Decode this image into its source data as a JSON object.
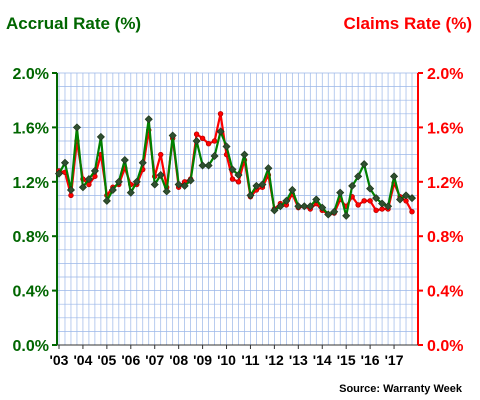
{
  "chart_data": {
    "type": "line",
    "left_axis_label": "Accrual Rate (%)",
    "right_axis_label": "Claims Rate (%)",
    "source": "Source: Warranty Week",
    "x_labels": [
      "'03",
      "'04",
      "'05",
      "'06",
      "'07",
      "'08",
      "'09",
      "'10",
      "'11",
      "'12",
      "'13",
      "'14",
      "'15",
      "'16",
      "'17"
    ],
    "y_ticks": [
      "0.0%",
      "0.4%",
      "0.8%",
      "1.2%",
      "1.6%",
      "2.0%"
    ],
    "ylim": [
      0,
      2.0
    ],
    "colors": {
      "accrual": "#006600",
      "claims": "#ff0000",
      "grid": "#9bb7e8"
    },
    "series": [
      {
        "key": "accrual",
        "color": "#008000",
        "values": [
          1.26,
          1.34,
          1.14,
          1.6,
          1.16,
          1.22,
          1.28,
          1.53,
          1.06,
          1.14,
          1.2,
          1.36,
          1.12,
          1.2,
          1.34,
          1.66,
          1.18,
          1.25,
          1.13,
          1.54,
          1.18,
          1.17,
          1.21,
          1.5,
          1.32,
          1.32,
          1.39,
          1.57,
          1.46,
          1.29,
          1.25,
          1.4,
          1.1,
          1.17,
          1.18,
          1.3,
          0.99,
          1.02,
          1.06,
          1.14,
          1.02,
          1.02,
          1.02,
          1.07,
          1.01,
          0.96,
          0.98,
          1.12,
          0.95,
          1.17,
          1.24,
          1.33,
          1.15,
          1.08,
          1.04,
          1.02,
          1.24,
          1.07,
          1.1,
          1.08
        ]
      },
      {
        "key": "claims",
        "color": "#ff0000",
        "values": [
          1.28,
          1.27,
          1.1,
          1.5,
          1.22,
          1.18,
          1.24,
          1.4,
          1.1,
          1.16,
          1.18,
          1.3,
          1.18,
          1.18,
          1.29,
          1.58,
          1.24,
          1.4,
          1.16,
          1.52,
          1.16,
          1.2,
          1.22,
          1.55,
          1.52,
          1.48,
          1.5,
          1.7,
          1.4,
          1.22,
          1.2,
          1.36,
          1.09,
          1.14,
          1.16,
          1.25,
          1.0,
          1.04,
          1.03,
          1.11,
          1.01,
          1.02,
          1.0,
          1.04,
          0.99,
          0.96,
          0.97,
          1.07,
          1.02,
          1.09,
          1.03,
          1.06,
          1.06,
          0.99,
          1.0,
          1.0,
          1.19,
          1.09,
          1.06,
          0.98
        ]
      }
    ]
  }
}
